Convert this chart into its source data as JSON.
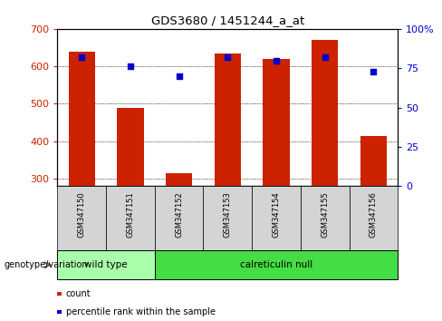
{
  "title": "GDS3680 / 1451244_a_at",
  "samples": [
    "GSM347150",
    "GSM347151",
    "GSM347152",
    "GSM347153",
    "GSM347154",
    "GSM347155",
    "GSM347156"
  ],
  "counts": [
    640,
    490,
    315,
    635,
    620,
    670,
    415
  ],
  "percentiles": [
    82,
    76,
    70,
    82,
    80,
    82,
    73
  ],
  "ylim_left": [
    280,
    700
  ],
  "ylim_right": [
    0,
    100
  ],
  "yticks_left": [
    300,
    400,
    500,
    600,
    700
  ],
  "yticks_right": [
    0,
    25,
    50,
    75,
    100
  ],
  "ytick_labels_right": [
    "0",
    "25",
    "50",
    "75",
    "100%"
  ],
  "bar_color": "#cc2200",
  "dot_color": "#0000cc",
  "grid_color": "#000000",
  "groups": [
    {
      "label": "wild type",
      "start": 0,
      "end": 2,
      "color": "#aaffaa"
    },
    {
      "label": "calreticulin null",
      "start": 2,
      "end": 7,
      "color": "#44dd44"
    }
  ],
  "genotype_label": "genotype/variation",
  "legend_items": [
    {
      "color": "#cc2200",
      "label": "count"
    },
    {
      "color": "#0000cc",
      "label": "percentile rank within the sample"
    }
  ],
  "bar_width": 0.55,
  "ax_bg": "#ffffff",
  "sample_box_color": "#d4d4d4"
}
